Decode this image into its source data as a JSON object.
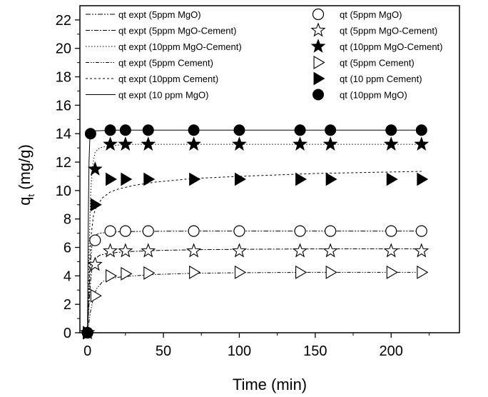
{
  "chart_data": {
    "type": "scatter",
    "xlabel": "Time (min)",
    "ylabel_main": "q",
    "ylabel_sub": "t",
    "ylabel_unit": " (mg/g)",
    "xlim": [
      -5,
      245
    ],
    "ylim": [
      0,
      23
    ],
    "xticks": [
      0,
      50,
      100,
      150,
      200
    ],
    "yticks": [
      0,
      2,
      4,
      6,
      8,
      10,
      12,
      14,
      16,
      18,
      20,
      22
    ],
    "grid": false,
    "legend_placement": "top",
    "series": [
      {
        "name": "qt (5ppm MgO)",
        "marker": "circle-open",
        "x": [
          0,
          5,
          15,
          25,
          40,
          70,
          100,
          140,
          160,
          200,
          220
        ],
        "y": [
          0,
          6.5,
          7.15,
          7.15,
          7.15,
          7.15,
          7.15,
          7.15,
          7.15,
          7.15,
          7.15
        ]
      },
      {
        "name": "qt (5ppm MgO-Cement)",
        "marker": "star-open",
        "x": [
          0,
          5,
          15,
          25,
          40,
          70,
          100,
          140,
          160,
          200,
          220
        ],
        "y": [
          0,
          4.8,
          5.75,
          5.75,
          5.75,
          5.75,
          5.75,
          5.75,
          5.75,
          5.75,
          5.75
        ]
      },
      {
        "name": "qt (10ppm MgO-Cement)",
        "marker": "star-filled",
        "x": [
          0,
          5,
          15,
          25,
          40,
          70,
          100,
          140,
          160,
          200,
          220
        ],
        "y": [
          0,
          11.5,
          13.25,
          13.25,
          13.25,
          13.25,
          13.25,
          13.25,
          13.25,
          13.25,
          13.25
        ]
      },
      {
        "name": "qt (5ppm Cement)",
        "marker": "triangle-right-open",
        "x": [
          0,
          5,
          15,
          25,
          40,
          70,
          100,
          140,
          160,
          200,
          220
        ],
        "y": [
          0,
          2.6,
          4.0,
          4.15,
          4.2,
          4.25,
          4.25,
          4.25,
          4.25,
          4.25,
          4.25
        ]
      },
      {
        "name": "qt (10 ppm Cement)",
        "marker": "triangle-right-filled",
        "x": [
          0,
          5,
          15,
          25,
          40,
          70,
          100,
          140,
          160,
          200,
          220
        ],
        "y": [
          0,
          9.0,
          10.8,
          10.8,
          10.8,
          10.8,
          10.8,
          10.8,
          10.8,
          10.8,
          10.8
        ]
      },
      {
        "name": "qt (10ppm MgO)",
        "marker": "circle-filled",
        "x": [
          0,
          2,
          15,
          25,
          40,
          70,
          100,
          140,
          160,
          200,
          220
        ],
        "y": [
          0,
          14.0,
          14.25,
          14.25,
          14.25,
          14.25,
          14.25,
          14.25,
          14.25,
          14.25,
          14.25
        ]
      }
    ],
    "fits": [
      {
        "name": "qt expt (5ppm MgO)",
        "dash": "7,2,2,2,2,2",
        "x": [
          0,
          1,
          2,
          3,
          5,
          8,
          12,
          20,
          30,
          50,
          80,
          120,
          160,
          220
        ],
        "y": [
          0,
          2.8,
          5.0,
          6.2,
          6.85,
          7.0,
          7.05,
          7.1,
          7.12,
          7.14,
          7.15,
          7.15,
          7.15,
          7.15
        ]
      },
      {
        "name": "qt expt (5ppm MgO-Cement)",
        "dash": "6,2,2,2",
        "x": [
          0,
          1,
          2,
          3,
          5,
          8,
          12,
          20,
          30,
          50,
          80,
          120,
          160,
          220
        ],
        "y": [
          0,
          2.0,
          3.6,
          4.6,
          5.2,
          5.45,
          5.55,
          5.65,
          5.72,
          5.8,
          5.85,
          5.88,
          5.9,
          5.9
        ]
      },
      {
        "name": "qt expt (10ppm MgO-Cement)",
        "dash": "1.5,2.5",
        "x": [
          0,
          1,
          2,
          3,
          5,
          8,
          12,
          20,
          30,
          50,
          80,
          120,
          160,
          220
        ],
        "y": [
          0,
          5.5,
          9.5,
          11.5,
          12.7,
          13.0,
          13.1,
          13.2,
          13.25,
          13.25,
          13.25,
          13.25,
          13.25,
          13.25
        ]
      },
      {
        "name": "qt expt (5ppm Cement)",
        "dash": "5,2,1.5,2,1.5,2",
        "x": [
          0,
          2,
          4,
          6,
          10,
          15,
          20,
          30,
          45,
          70,
          100,
          150,
          220
        ],
        "y": [
          0,
          1.5,
          2.5,
          3.1,
          3.6,
          3.8,
          3.9,
          4.0,
          4.1,
          4.18,
          4.22,
          4.25,
          4.25
        ]
      },
      {
        "name": "qt expt (10ppm Cement)",
        "dash": "3,3",
        "x": [
          0,
          2,
          4,
          6,
          10,
          15,
          20,
          30,
          45,
          70,
          100,
          150,
          220
        ],
        "y": [
          0,
          6.5,
          8.3,
          8.9,
          9.5,
          9.9,
          10.1,
          10.35,
          10.6,
          10.85,
          11.0,
          11.2,
          11.35
        ]
      },
      {
        "name": "qt expt (10 ppm MgO)",
        "dash": "",
        "x": [
          0,
          0.5,
          1,
          1.5,
          2,
          3,
          5,
          10,
          20,
          40,
          80,
          160,
          220
        ],
        "y": [
          0,
          7.5,
          12.0,
          13.5,
          14.0,
          14.15,
          14.2,
          14.22,
          14.25,
          14.25,
          14.25,
          14.25,
          14.25
        ]
      }
    ]
  }
}
